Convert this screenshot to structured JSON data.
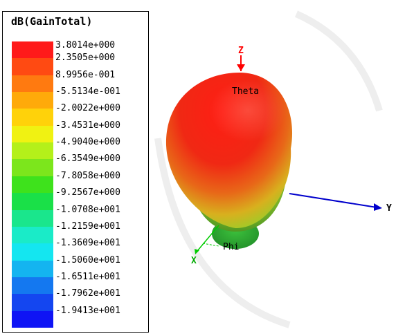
{
  "legend": {
    "title": "dB(GainTotal)",
    "entries": [
      {
        "label": "3.8014e+000",
        "color": "#ff1a1a"
      },
      {
        "label": "2.3505e+000",
        "color": "#ff4a12"
      },
      {
        "label": "8.9956e-001",
        "color": "#ff7a10"
      },
      {
        "label": "-5.5134e-001",
        "color": "#ffaa0a"
      },
      {
        "label": "-2.0022e+000",
        "color": "#ffd20a"
      },
      {
        "label": "-3.4531e+000",
        "color": "#f0f212"
      },
      {
        "label": "-4.9040e+000",
        "color": "#b4f01a"
      },
      {
        "label": "-6.3549e+000",
        "color": "#7ce61c"
      },
      {
        "label": "-7.8058e+000",
        "color": "#3ee21c"
      },
      {
        "label": "-9.2567e+000",
        "color": "#1ae048"
      },
      {
        "label": "-1.0708e+001",
        "color": "#1ae68c"
      },
      {
        "label": "-1.2159e+001",
        "color": "#1aebc8"
      },
      {
        "label": "-1.3609e+001",
        "color": "#14e6f0"
      },
      {
        "label": "-1.5060e+001",
        "color": "#14b4f0"
      },
      {
        "label": "-1.6511e+001",
        "color": "#1478f0"
      },
      {
        "label": "-1.7962e+001",
        "color": "#1446f0"
      },
      {
        "label": "-1.9413e+001",
        "color": "#0f14f5"
      }
    ]
  },
  "axes": {
    "z_label": "Z",
    "y_label": "Y",
    "x_label": "X",
    "theta_label": "Theta",
    "phi_label": "Phi",
    "z_color": "#ff0000",
    "y_color": "#0000cc",
    "x_color": "#00cc00"
  }
}
